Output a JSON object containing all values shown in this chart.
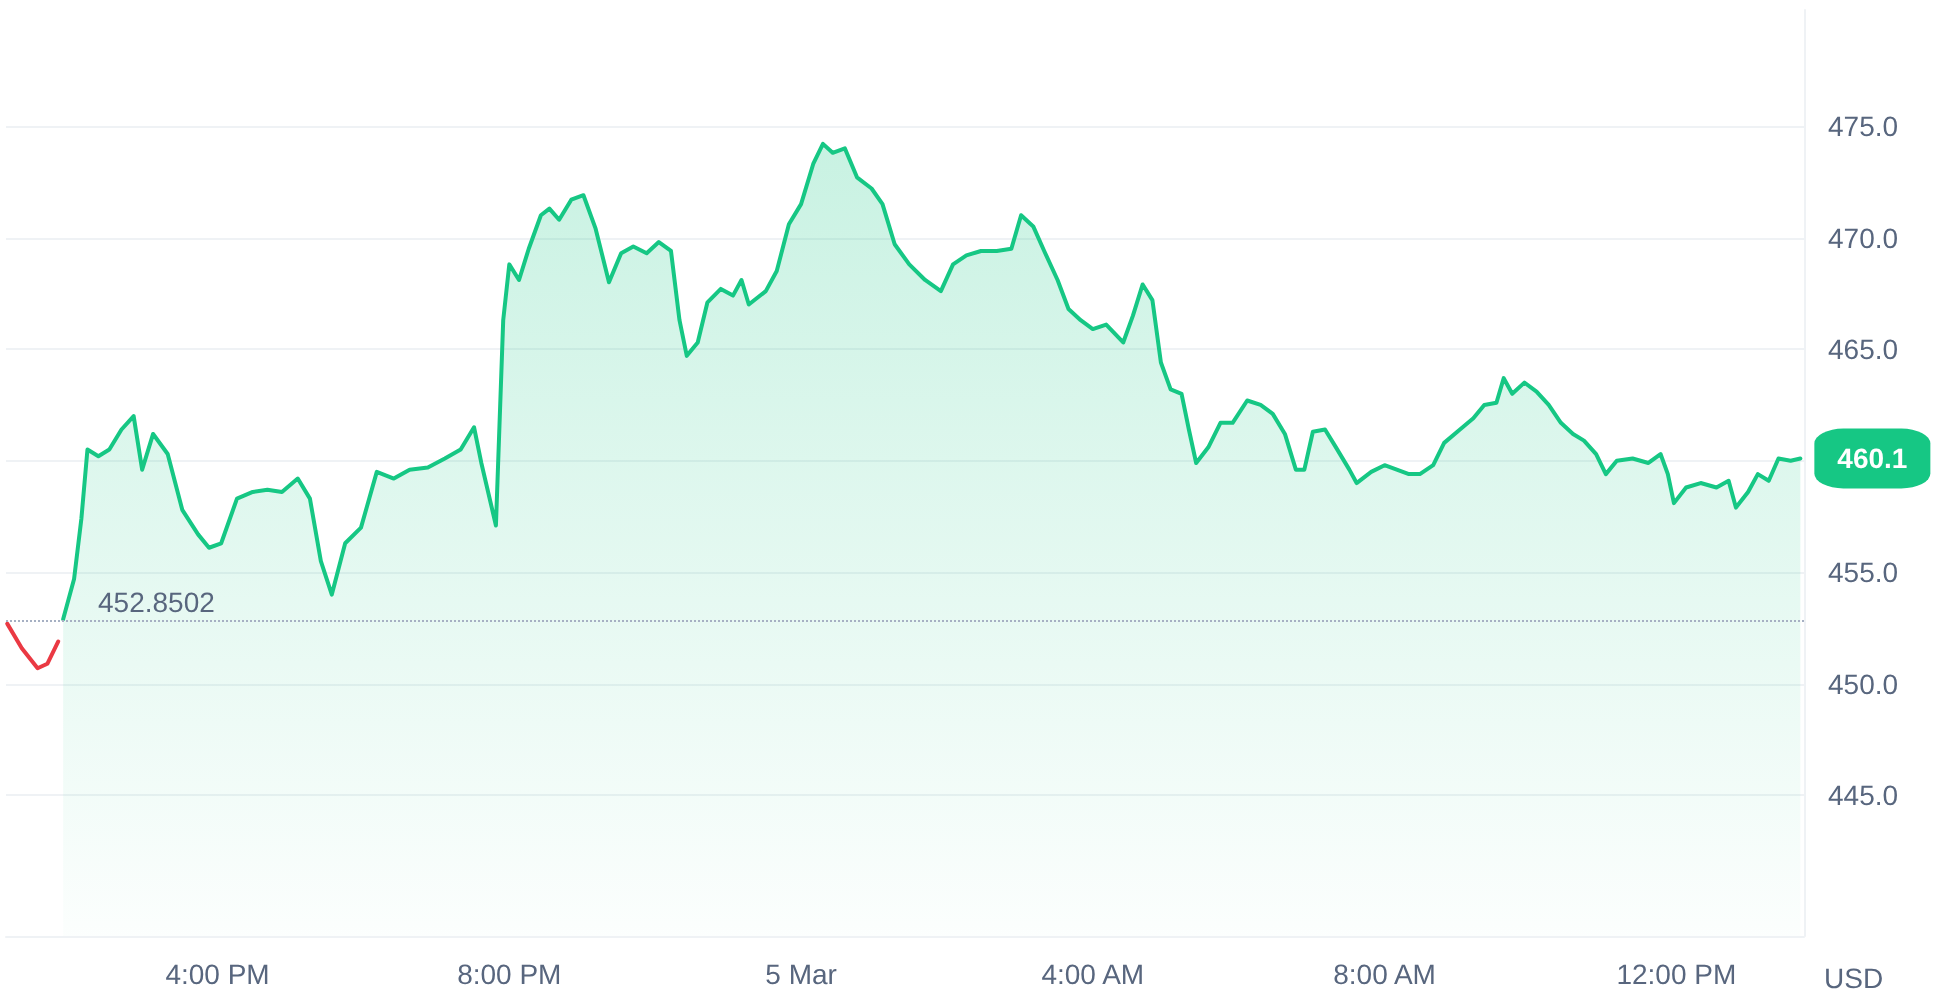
{
  "chart_data": {
    "type": "area",
    "ylabel": "USD",
    "xlim": [
      "--03-04T13:06",
      "--03-05T13:45"
    ],
    "ylim": [
      438.7,
      480.2
    ],
    "xticks": [
      {
        "value": "--03-04T16:00",
        "label": "4:00 PM"
      },
      {
        "value": "--03-04T20:00",
        "label": "8:00 PM"
      },
      {
        "value": "--03-05T00:00",
        "label": "5 Mar"
      },
      {
        "value": "--03-05T04:00",
        "label": "4:00 AM"
      },
      {
        "value": "--03-05T08:00",
        "label": "8:00 AM"
      },
      {
        "value": "--03-05T12:00",
        "label": "12:00 PM"
      }
    ],
    "yticks": [
      {
        "value": 445,
        "label": "445.0"
      },
      {
        "value": 450,
        "label": "450.0"
      },
      {
        "value": 455,
        "label": "455.0"
      },
      {
        "value": 460,
        "label": null
      },
      {
        "value": 465,
        "label": "465.0"
      },
      {
        "value": 470,
        "label": "470.0"
      },
      {
        "value": 475,
        "label": "475.0"
      }
    ],
    "grid": "y",
    "marker": "none",
    "line_style": "solid",
    "ref_lines": [
      {
        "axis": "y",
        "value": 452.8502,
        "label": "452.8502",
        "color": "#a6b0c3",
        "line_style": "dotted"
      }
    ],
    "annotations": [
      {
        "text": "460.1",
        "x": "--03-05T13:42",
        "y": 460.1
      }
    ],
    "series": [
      {
        "type": "line",
        "color": "#ea3943",
        "x": [
          "--03-04T13:07",
          "--03-04T13:19",
          "--03-04T13:32",
          "--03-04T13:40",
          "--03-04T13:49"
        ],
        "values": [
          452.7,
          451.6,
          450.7,
          450.9,
          451.9
        ]
      },
      {
        "type": "area",
        "color": "#16c784",
        "x": [
          "--03-04T13:53",
          "--03-04T14:02",
          "--03-04T14:08",
          "--03-04T14:13",
          "--03-04T14:22",
          "--03-04T14:31",
          "--03-04T14:41",
          "--03-04T14:51",
          "--03-04T14:58",
          "--03-04T15:07",
          "--03-04T15:19",
          "--03-04T15:31",
          "--03-04T15:44",
          "--03-04T15:53",
          "--03-04T16:03",
          "--03-04T16:16",
          "--03-04T16:29",
          "--03-04T16:41",
          "--03-04T16:53",
          "--03-04T17:06",
          "--03-04T17:16",
          "--03-04T17:25",
          "--03-04T17:34",
          "--03-04T17:45",
          "--03-04T17:58",
          "--03-04T18:11",
          "--03-04T18:25",
          "--03-04T18:38",
          "--03-04T18:53",
          "--03-04T19:07",
          "--03-04T19:20",
          "--03-04T19:31",
          "--03-04T19:37",
          "--03-04T19:49",
          "--03-04T19:55",
          "--03-04T20:00",
          "--03-04T20:08",
          "--03-04T20:16",
          "--03-04T20:26",
          "--03-04T20:33",
          "--03-04T20:41",
          "--03-04T20:51",
          "--03-04T21:01",
          "--03-04T21:11",
          "--03-04T21:22",
          "--03-04T21:32",
          "--03-04T21:42",
          "--03-04T21:53",
          "--03-04T22:03",
          "--03-04T22:13",
          "--03-04T22:20",
          "--03-04T22:26",
          "--03-04T22:35",
          "--03-04T22:43",
          "--03-04T22:54",
          "--03-04T23:04",
          "--03-04T23:11",
          "--03-04T23:17",
          "--03-04T23:31",
          "--03-04T23:40",
          "--03-04T23:50",
          "--03-05T00:00",
          "--03-05T00:10",
          "--03-05T00:18",
          "--03-05T00:26",
          "--03-05T00:36",
          "--03-05T00:46",
          "--03-05T00:58",
          "--03-05T01:07",
          "--03-05T01:17",
          "--03-05T01:29",
          "--03-05T01:42",
          "--03-05T01:55",
          "--03-05T02:05",
          "--03-05T02:16",
          "--03-05T02:28",
          "--03-05T02:41",
          "--03-05T02:53",
          "--03-05T03:01",
          "--03-05T03:11",
          "--03-05T03:20",
          "--03-05T03:31",
          "--03-05T03:40",
          "--03-05T03:50",
          "--03-05T04:00",
          "--03-05T04:11",
          "--03-05T04:25",
          "--03-05T04:33",
          "--03-05T04:41",
          "--03-05T04:49",
          "--03-05T04:56",
          "--03-05T05:04",
          "--03-05T05:13",
          "--03-05T05:19",
          "--03-05T05:25",
          "--03-05T05:35",
          "--03-05T05:45",
          "--03-05T05:55",
          "--03-05T06:07",
          "--03-05T06:18",
          "--03-05T06:28",
          "--03-05T06:38",
          "--03-05T06:47",
          "--03-05T06:54",
          "--03-05T07:01",
          "--03-05T07:11",
          "--03-05T07:20",
          "--03-05T07:31",
          "--03-05T07:37",
          "--03-05T07:49",
          "--03-05T08:00",
          "--03-05T08:10",
          "--03-05T08:20",
          "--03-05T08:29",
          "--03-05T08:40",
          "--03-05T08:49",
          "--03-05T09:02",
          "--03-05T09:13",
          "--03-05T09:22",
          "--03-05T09:32",
          "--03-05T09:38",
          "--03-05T09:45",
          "--03-05T09:55",
          "--03-05T10:05",
          "--03-05T10:15",
          "--03-05T10:25",
          "--03-05T10:35",
          "--03-05T10:44",
          "--03-05T10:54",
          "--03-05T11:02",
          "--03-05T11:11",
          "--03-05T11:24",
          "--03-05T11:37",
          "--03-05T11:47",
          "--03-05T11:53",
          "--03-05T11:58",
          "--03-05T12:08",
          "--03-05T12:20",
          "--03-05T12:33",
          "--03-05T12:43",
          "--03-05T12:49",
          "--03-05T12:59",
          "--03-05T13:07",
          "--03-05T13:16",
          "--03-05T13:24",
          "--03-05T13:34",
          "--03-05T13:42"
        ],
        "values": [
          452.9,
          454.7,
          457.4,
          460.5,
          460.2,
          460.5,
          461.4,
          462.0,
          459.6,
          461.2,
          460.3,
          457.8,
          456.7,
          456.1,
          456.3,
          458.3,
          458.6,
          458.7,
          458.6,
          459.2,
          458.3,
          455.5,
          454.0,
          456.3,
          457.0,
          459.5,
          459.2,
          459.6,
          459.7,
          460.1,
          460.5,
          461.5,
          459.9,
          457.1,
          466.3,
          468.8,
          468.1,
          469.5,
          471.0,
          471.3,
          470.8,
          471.7,
          471.9,
          470.4,
          468.0,
          469.3,
          469.6,
          469.3,
          469.8,
          469.4,
          466.3,
          464.7,
          465.3,
          467.1,
          467.7,
          467.4,
          468.1,
          467.0,
          467.6,
          468.5,
          470.6,
          471.5,
          473.3,
          474.2,
          473.8,
          474.0,
          472.7,
          472.2,
          471.5,
          469.7,
          468.8,
          468.1,
          467.6,
          468.8,
          469.2,
          469.4,
          469.4,
          469.5,
          471.0,
          470.5,
          469.4,
          468.1,
          466.8,
          466.3,
          465.9,
          466.1,
          465.3,
          466.5,
          467.9,
          467.2,
          464.4,
          463.2,
          463.0,
          461.4,
          459.9,
          460.6,
          461.7,
          461.7,
          462.7,
          462.5,
          462.1,
          461.2,
          459.6,
          459.6,
          461.3,
          461.4,
          460.6,
          459.6,
          459.0,
          459.5,
          459.8,
          459.6,
          459.4,
          459.4,
          459.8,
          460.8,
          461.4,
          461.9,
          462.5,
          462.6,
          463.7,
          463.0,
          463.5,
          463.1,
          462.5,
          461.7,
          461.2,
          460.9,
          460.3,
          459.4,
          460.0,
          460.1,
          459.9,
          460.3,
          459.4,
          458.1,
          458.8,
          459.0,
          458.8,
          459.1,
          457.9,
          458.6,
          459.4,
          459.1,
          460.1,
          460.0,
          460.1
        ]
      }
    ]
  }
}
